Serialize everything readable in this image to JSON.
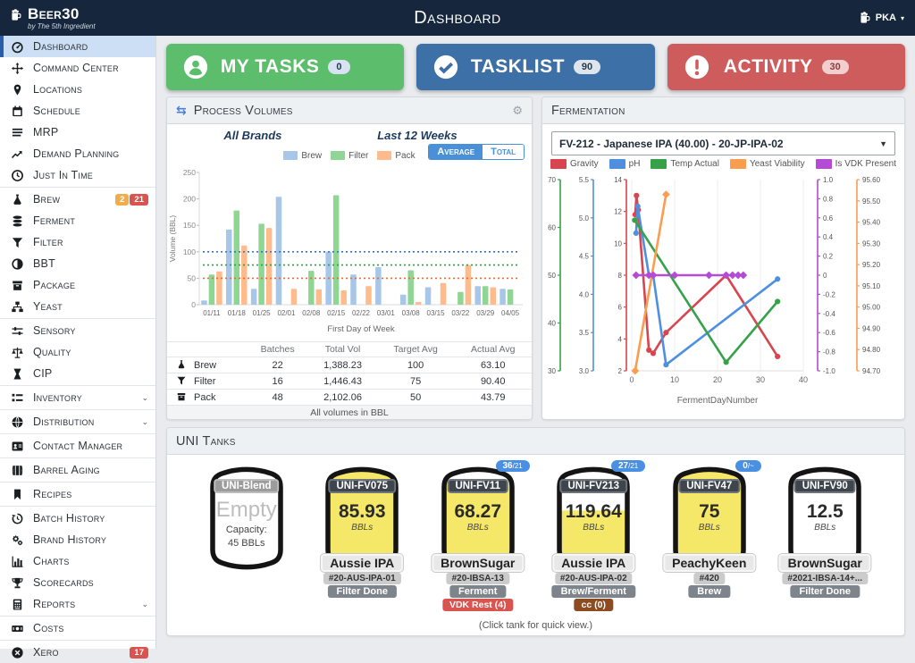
{
  "navbar": {
    "logo_title": "Beer30",
    "logo_subtitle": "by The 5th Ingredient",
    "title": "Dashboard",
    "user_initials": "PKA"
  },
  "sidebar": {
    "items": [
      {
        "label": "Dashboard",
        "icon": "gauge",
        "active": true
      },
      {
        "label": "Command Center",
        "icon": "move"
      },
      {
        "label": "Locations",
        "icon": "pin"
      },
      {
        "label": "Schedule",
        "icon": "calendar"
      },
      {
        "label": "MRP",
        "icon": "lines"
      },
      {
        "label": "Demand Planning",
        "icon": "trend"
      },
      {
        "label": "Just In Time",
        "icon": "clock",
        "divider_after": true
      },
      {
        "label": "Brew",
        "icon": "flask",
        "badges": [
          {
            "text": "2",
            "color": "#F0AD4E"
          },
          {
            "text": "21",
            "color": "#D9534F"
          }
        ]
      },
      {
        "label": "Ferment",
        "icon": "stack"
      },
      {
        "label": "Filter",
        "icon": "funnel"
      },
      {
        "label": "BBT",
        "icon": "halfcircle"
      },
      {
        "label": "Package",
        "icon": "box"
      },
      {
        "label": "Yeast",
        "icon": "sitemap",
        "divider_after": true
      },
      {
        "label": "Sensory",
        "icon": "sliders"
      },
      {
        "label": "Quality",
        "icon": "scale"
      },
      {
        "label": "CIP",
        "icon": "hourglass",
        "divider_after": true
      },
      {
        "label": "Inventory",
        "icon": "grid",
        "chevron": true,
        "divider_after": true
      },
      {
        "label": "Distribution",
        "icon": "globe",
        "chevron": true,
        "divider_after": true
      },
      {
        "label": "Contact Manager",
        "icon": "idcard",
        "divider_after": true
      },
      {
        "label": "Barrel Aging",
        "icon": "barrel",
        "divider_after": true
      },
      {
        "label": "Recipes",
        "icon": "bookmark",
        "divider_after": true
      },
      {
        "label": "Batch History",
        "icon": "history"
      },
      {
        "label": "Brand History",
        "icon": "gears"
      },
      {
        "label": "Charts",
        "icon": "barchart"
      },
      {
        "label": "Scorecards",
        "icon": "trophy"
      },
      {
        "label": "Reports",
        "icon": "calculator",
        "chevron": true,
        "divider_after": true
      },
      {
        "label": "Costs",
        "icon": "money",
        "divider_after": true
      },
      {
        "label": "Xero",
        "icon": "xero-circle",
        "badges": [
          {
            "text": "17",
            "color": "#D9534F"
          }
        ]
      }
    ]
  },
  "task_buttons": [
    {
      "label": "MY TASKS",
      "count": "0",
      "icon": "person",
      "bg": "#5CBE6C",
      "badge_bg": "#D8E2F2",
      "badge_fg": "#1E3A5F"
    },
    {
      "label": "TASKLIST",
      "count": "90",
      "icon": "check",
      "bg": "#3D70A6",
      "badge_bg": "#DEE5EC",
      "badge_fg": "#2B3A4A"
    },
    {
      "label": "ACTIVITY",
      "count": "30",
      "icon": "alert",
      "bg": "#CF5C5C",
      "badge_bg": "#F2CFCE",
      "badge_fg": "#8F3B3B"
    }
  ],
  "process_volumes": {
    "title": "Process Volumes",
    "subtitle_left": "All Brands",
    "subtitle_right": "Last 12 Weeks",
    "toggle_labels": [
      "Average",
      "Total"
    ],
    "active_toggle": "Average",
    "table": {
      "headers": [
        "",
        "Batches",
        "Total Vol",
        "Target Avg",
        "Actual Avg"
      ],
      "rows": [
        {
          "icon": "flask",
          "label": "Brew",
          "batches": "22",
          "total_vol": "1,388.23",
          "target_avg": "100",
          "actual_avg": "63.10"
        },
        {
          "icon": "funnel",
          "label": "Filter",
          "batches": "16",
          "total_vol": "1,446.43",
          "target_avg": "75",
          "actual_avg": "90.40"
        },
        {
          "icon": "box",
          "label": "Pack",
          "batches": "48",
          "total_vol": "2,102.06",
          "target_avg": "50",
          "actual_avg": "43.79"
        }
      ],
      "footer": "All volumes in BBL"
    }
  },
  "fermentation": {
    "title": "Fermentation",
    "selected_option": "FV-212 - Japanese IPA (40.00) - 20-JP-IPA-02"
  },
  "chart_data": [
    {
      "type": "bar",
      "title": "Process Volumes (Average view)",
      "categories": [
        "01/11",
        "01/18",
        "01/25",
        "02/01",
        "02/08",
        "02/15",
        "02/22",
        "03/01",
        "03/08",
        "03/15",
        "03/22",
        "03/29",
        "04/05"
      ],
      "series": [
        {
          "name": "Brew",
          "color": "#A8C6E8",
          "target": 100,
          "target_color": "#3B6FD4",
          "values": [
            8,
            142,
            30,
            204,
            0,
            100,
            57,
            71,
            19,
            33,
            0,
            35,
            30
          ]
        },
        {
          "name": "Filter",
          "color": "#8FD694",
          "target": 75,
          "target_color": "#2F9E44",
          "values": [
            57,
            178,
            153,
            0,
            64,
            207,
            0,
            0,
            65,
            0,
            24,
            35,
            29
          ]
        },
        {
          "name": "Pack",
          "color": "#FFBB8C",
          "target": 50,
          "target_color": "#ED6A2C",
          "values": [
            63,
            112,
            145,
            30,
            29,
            27,
            35,
            0,
            5,
            41,
            75,
            33,
            0
          ]
        }
      ],
      "xlabel": "First Day of Week",
      "ylabel": "Volume (BBL)",
      "ylim": [
        0,
        250
      ],
      "ytick": 50,
      "legend_position": "top"
    },
    {
      "type": "line",
      "title": "Fermentation trends FV-212",
      "xlabel": "FermentDayNumber",
      "xlim": [
        0,
        40
      ],
      "xticks": [
        0,
        10,
        20,
        30,
        40
      ],
      "axes": [
        {
          "id": "temp",
          "side": "left",
          "color": "#35A249",
          "min": 30,
          "max": 70,
          "ticks": [
            "30",
            "40",
            "50",
            "60",
            "70"
          ]
        },
        {
          "id": "ph",
          "side": "left",
          "color": "#4E8FE0",
          "min": 3.0,
          "max": 5.5,
          "ticks": [
            "3.0",
            "3.5",
            "4.0",
            "4.5",
            "5.0",
            "5.5"
          ]
        },
        {
          "id": "gravity",
          "side": "left",
          "color": "#D9454F",
          "min": 2,
          "max": 14,
          "ticks": [
            "2",
            "4",
            "6",
            "8",
            "10",
            "12",
            "14"
          ]
        },
        {
          "id": "vdk",
          "side": "right",
          "color": "#B44BD6",
          "min": -1.0,
          "max": 1.0,
          "ticks": [
            "1.0",
            "0.8",
            "0.6",
            "0.4",
            "0.2",
            "0",
            "-0.2",
            "-0.4",
            "-0.6",
            "-0.8",
            "-1.0"
          ]
        },
        {
          "id": "yeast",
          "side": "right",
          "color": "#FB9D4F",
          "min": 94.7,
          "max": 95.6,
          "ticks": [
            "95.60",
            "95.50",
            "95.40",
            "95.30",
            "95.20",
            "95.10",
            "95.00",
            "94.90",
            "94.80",
            "94.70"
          ]
        }
      ],
      "series": [
        {
          "name": "Gravity",
          "axis": "gravity",
          "color": "#D9454F",
          "marker": "circle",
          "points": [
            [
              0.8,
              11.8
            ],
            [
              1.1,
              13.0
            ],
            [
              1.5,
              12.1
            ],
            [
              4,
              3.3
            ],
            [
              5,
              3.1
            ],
            [
              8,
              4.4
            ],
            [
              22,
              8.0
            ],
            [
              34,
              2.9
            ]
          ]
        },
        {
          "name": "pH",
          "axis": "ph",
          "color": "#4E8FE0",
          "marker": "circle",
          "points": [
            [
              1,
              4.8
            ],
            [
              1.4,
              5.15
            ],
            [
              4,
              4.25
            ],
            [
              5,
              4.25
            ],
            [
              8,
              3.08
            ],
            [
              34,
              4.2
            ]
          ]
        },
        {
          "name": "Temp Actual",
          "axis": "temp",
          "color": "#35A249",
          "marker": "circle",
          "points": [
            [
              0.7,
              61.5
            ],
            [
              22,
              31.8
            ],
            [
              34,
              44.5
            ]
          ]
        },
        {
          "name": "Yeast Viability",
          "axis": "yeast",
          "color": "#FB9D4F",
          "marker": "diamond",
          "points": [
            [
              0.8,
              94.7
            ],
            [
              8,
              95.53
            ]
          ]
        },
        {
          "name": "Is VDK Present",
          "axis": "vdk",
          "color": "#B44BD6",
          "marker": "diamond",
          "points": [
            [
              1,
              0
            ],
            [
              4,
              0
            ],
            [
              5,
              0
            ],
            [
              10,
              0
            ],
            [
              18,
              0
            ],
            [
              22,
              0
            ],
            [
              23.5,
              0
            ],
            [
              24.8,
              0
            ],
            [
              26,
              0
            ]
          ]
        }
      ],
      "legend": [
        "Gravity",
        "pH",
        "Temp Actual",
        "Yeast Viability",
        "Is VDK Present"
      ],
      "legend_position": "top"
    }
  ],
  "uni_tanks": {
    "title": "UNI Tanks",
    "footnote": "(Click tank for quick view.)",
    "tanks": [
      {
        "name": "UNI-Blend",
        "name_style": "gray",
        "empty_label": "Empty",
        "capacity_label": "Capacity:",
        "capacity": "45 BBLs",
        "fill_pct": 0,
        "tags": []
      },
      {
        "name": "UNI-FV075",
        "volume": "85.93",
        "unit": "BBLs",
        "fill_pct": 100,
        "tags": [
          {
            "text": "Aussie IPA",
            "type": "beer"
          },
          {
            "text": "#20-AUS-IPA-01",
            "type": "batch"
          },
          {
            "text": "Filter Done",
            "type": "status"
          }
        ]
      },
      {
        "name": "UNI-FV11",
        "badge": "36",
        "badge_suffix": "/21",
        "volume": "68.27",
        "unit": "BBLs",
        "fill_pct": 86,
        "tags": [
          {
            "text": "BrownSugar",
            "type": "beer"
          },
          {
            "text": "#20-IBSA-13",
            "type": "batch"
          },
          {
            "text": "Ferment",
            "type": "status"
          },
          {
            "text": "VDK Rest (4)",
            "type": "alert-red"
          }
        ]
      },
      {
        "name": "UNI-FV213",
        "badge": "27",
        "badge_suffix": "/21",
        "volume": "119.64",
        "unit": "BBLs",
        "fill_pct": 58,
        "tags": [
          {
            "text": "Aussie IPA",
            "type": "beer"
          },
          {
            "text": "#20-AUS-IPA-02",
            "type": "batch"
          },
          {
            "text": "Brew/Ferment",
            "type": "status"
          },
          {
            "text": "cc (0)",
            "type": "alert-brown"
          }
        ]
      },
      {
        "name": "UNI-FV47",
        "badge": "0",
        "badge_suffix": "/~",
        "volume": "75",
        "unit": "BBLs",
        "fill_pct": 100,
        "tags": [
          {
            "text": "PeachyKeen",
            "type": "beer"
          },
          {
            "text": "#420",
            "type": "batch"
          },
          {
            "text": "Brew",
            "type": "status"
          }
        ]
      },
      {
        "name": "UNI-FV90",
        "volume": "12.5",
        "unit": "BBLs",
        "fill_pct": 0,
        "tags": [
          {
            "text": "BrownSugar",
            "type": "beer"
          },
          {
            "text": "#2021-IBSA-14+...",
            "type": "batch"
          },
          {
            "text": "Filter Done",
            "type": "status"
          }
        ]
      }
    ]
  }
}
